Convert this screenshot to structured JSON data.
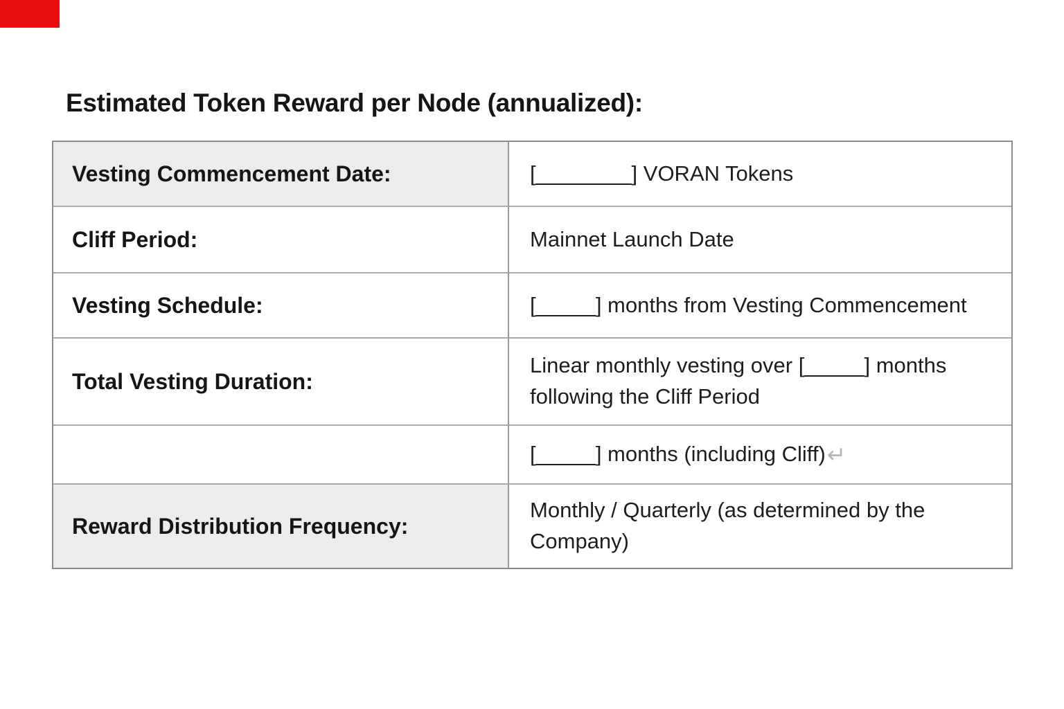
{
  "page": {
    "title": "Estimated Token Reward per Node (annualized):"
  },
  "marker_color": "#e90b0e",
  "shaded_row_color": "#ebecee",
  "table": {
    "rows": [
      {
        "label": "Vesting Commencement Date:",
        "value": "[________] VORAN Tokens"
      },
      {
        "label": "Cliff Period:",
        "value": "Mainnet Launch Date"
      },
      {
        "label": "Vesting Schedule:",
        "value": "[_____] months from Vesting Commencement"
      },
      {
        "label": "Total Vesting Duration:",
        "value": "Linear monthly vesting over [_____] months following the Cliff Period"
      },
      {
        "label": "",
        "value": "[_____] months (including Cliff)",
        "line_break_mark": "↵"
      },
      {
        "label": "Reward Distribution Frequency:",
        "value": "Monthly / Quarterly (as determined by the Company)"
      }
    ]
  }
}
